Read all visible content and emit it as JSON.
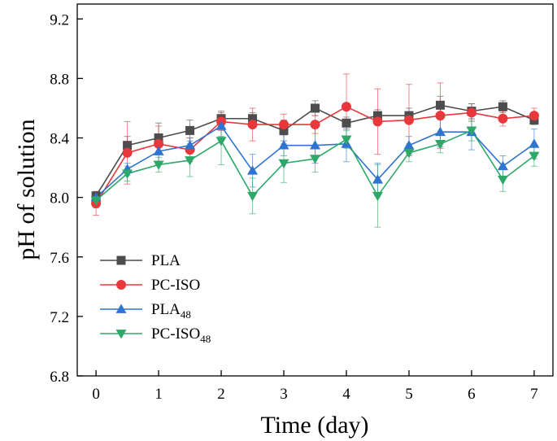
{
  "chart_data": {
    "type": "line",
    "xlabel": "Time (day)",
    "ylabel": "pH of solution",
    "xlim": [
      -0.3,
      7.3
    ],
    "ylim": [
      6.8,
      9.3
    ],
    "x_ticks": [
      0,
      1,
      2,
      3,
      4,
      5,
      6,
      7
    ],
    "y_ticks": [
      6.8,
      7.2,
      7.6,
      8.0,
      8.4,
      8.8,
      9.2
    ],
    "x": [
      0,
      0.5,
      1,
      1.5,
      2,
      2.5,
      3,
      3.5,
      4,
      4.5,
      5,
      5.5,
      6,
      6.5,
      7
    ],
    "legend_position": "bottom-left",
    "series": [
      {
        "name": "PLA",
        "sub": "",
        "color": "#4d4d4d",
        "marker": "square",
        "values": [
          8.01,
          8.35,
          8.4,
          8.45,
          8.53,
          8.53,
          8.45,
          8.6,
          8.5,
          8.55,
          8.55,
          8.62,
          8.58,
          8.61,
          8.52
        ],
        "errors": [
          0.03,
          0.06,
          0.1,
          0.07,
          0.05,
          0.04,
          0.07,
          0.05,
          0.04,
          0.04,
          0.05,
          0.06,
          0.05,
          0.04,
          0.03
        ]
      },
      {
        "name": "PC-ISO",
        "sub": "",
        "color": "#e8383c",
        "marker": "circle",
        "values": [
          7.96,
          8.3,
          8.36,
          8.32,
          8.51,
          8.49,
          8.49,
          8.49,
          8.61,
          8.51,
          8.52,
          8.55,
          8.57,
          8.53,
          8.55
        ],
        "errors": [
          0.08,
          0.21,
          0.12,
          0.08,
          0.06,
          0.11,
          0.07,
          0.06,
          0.22,
          0.22,
          0.24,
          0.22,
          0.06,
          0.05,
          0.05
        ]
      },
      {
        "name": "PLA",
        "sub": "48",
        "color": "#2f74d0",
        "marker": "triangle-up",
        "values": [
          8.0,
          8.19,
          8.31,
          8.35,
          8.48,
          8.18,
          8.35,
          8.35,
          8.36,
          8.12,
          8.35,
          8.44,
          8.44,
          8.21,
          8.36
        ],
        "errors": [
          0.03,
          0.04,
          0.09,
          0.05,
          0.07,
          0.11,
          0.07,
          0.12,
          0.12,
          0.11,
          0.06,
          0.1,
          0.12,
          0.07,
          0.1
        ]
      },
      {
        "name": "PC-ISO",
        "sub": "48",
        "color": "#2ea868",
        "marker": "triangle-down",
        "values": [
          7.98,
          8.16,
          8.22,
          8.25,
          8.38,
          8.01,
          8.23,
          8.26,
          8.39,
          8.01,
          8.3,
          8.36,
          8.45,
          8.12,
          8.28
        ],
        "errors": [
          0.05,
          0.05,
          0.05,
          0.11,
          0.16,
          0.12,
          0.13,
          0.09,
          0.06,
          0.21,
          0.06,
          0.06,
          0.07,
          0.08,
          0.07
        ]
      }
    ]
  }
}
